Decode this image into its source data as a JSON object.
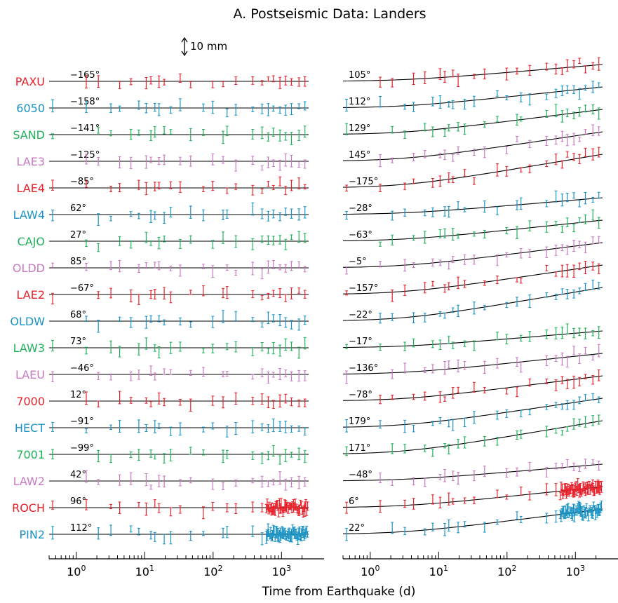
{
  "chart_data": {
    "type": "line",
    "title": "A. Postseismic Data: Landers",
    "xlabel": "Time from Earthquake (d)",
    "xscale": "log",
    "xlim": [
      0.4,
      2500
    ],
    "x_ticks": [
      {
        "base": "10",
        "exp": "0"
      },
      {
        "base": "10",
        "exp": "1"
      },
      {
        "base": "10",
        "exp": "2"
      },
      {
        "base": "10",
        "exp": "3"
      }
    ],
    "scale_bar": "10 mm",
    "colors": {
      "red": "#e8202a",
      "blue": "#1a93c4",
      "green": "#1fb25a",
      "purple": "#c779c2"
    },
    "stations": [
      {
        "name": "PAXU",
        "color": "#e8202a",
        "angle_left": "−165°",
        "angle_right": "105°"
      },
      {
        "name": "6050",
        "color": "#1a93c4",
        "angle_left": "−158°",
        "angle_right": "112°"
      },
      {
        "name": "SAND",
        "color": "#1fb25a",
        "angle_left": "−141°",
        "angle_right": "129°"
      },
      {
        "name": "LAE3",
        "color": "#c779c2",
        "angle_left": "−125°",
        "angle_right": "145°"
      },
      {
        "name": "LAE4",
        "color": "#e8202a",
        "angle_left": "−85°",
        "angle_right": "−175°"
      },
      {
        "name": "LAW4",
        "color": "#1a93c4",
        "angle_left": "62°",
        "angle_right": "−28°"
      },
      {
        "name": "CAJO",
        "color": "#1fb25a",
        "angle_left": "27°",
        "angle_right": "−63°"
      },
      {
        "name": "OLDD",
        "color": "#c779c2",
        "angle_left": "85°",
        "angle_right": "−5°"
      },
      {
        "name": "LAE2",
        "color": "#e8202a",
        "angle_left": "−67°",
        "angle_right": "−157°"
      },
      {
        "name": "OLDW",
        "color": "#1a93c4",
        "angle_left": "68°",
        "angle_right": "−22°"
      },
      {
        "name": "LAW3",
        "color": "#1fb25a",
        "angle_left": "73°",
        "angle_right": "−17°"
      },
      {
        "name": "LAEU",
        "color": "#c779c2",
        "angle_left": "−46°",
        "angle_right": "−136°"
      },
      {
        "name": "7000",
        "color": "#e8202a",
        "angle_left": "12°",
        "angle_right": "−78°"
      },
      {
        "name": "HECT",
        "color": "#1a93c4",
        "angle_left": "−91°",
        "angle_right": "179°"
      },
      {
        "name": "7001",
        "color": "#1fb25a",
        "angle_left": "−99°",
        "angle_right": "171°"
      },
      {
        "name": "LAW2",
        "color": "#c779c2",
        "angle_left": "42°",
        "angle_right": "−48°"
      },
      {
        "name": "ROCH",
        "color": "#e8202a",
        "angle_left": "96°",
        "angle_right": "6°"
      },
      {
        "name": "PIN2",
        "color": "#1a93c4",
        "angle_left": "112°",
        "angle_right": "22°"
      }
    ]
  }
}
